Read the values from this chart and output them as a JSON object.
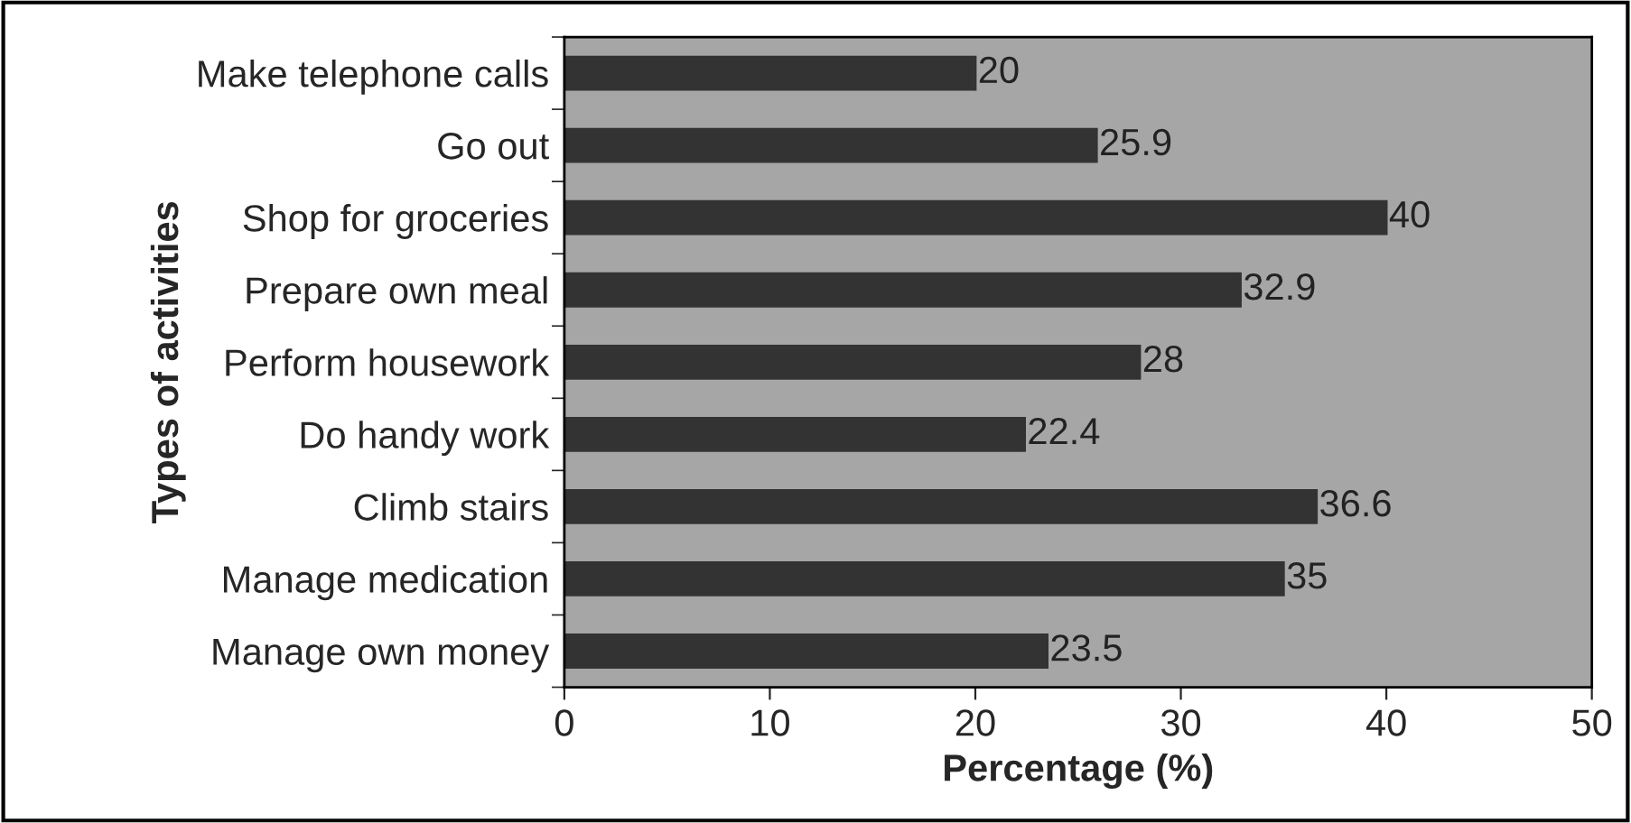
{
  "chart_data": {
    "type": "bar",
    "orientation": "horizontal",
    "xlabel": "Percentage (%)",
    "ylabel": "Types of activities",
    "categories": [
      "Make telephone calls",
      "Go out",
      "Shop for groceries",
      "Prepare own meal",
      "Perform housework",
      "Do handy work",
      "Climb stairs",
      "Manage medication",
      "Manage own money"
    ],
    "values": [
      20,
      25.9,
      40,
      32.9,
      28,
      22.4,
      36.6,
      35,
      23.5
    ],
    "color": "#333333",
    "xlim": [
      0,
      50
    ],
    "xticks": [
      0,
      10,
      20,
      30,
      40,
      50
    ],
    "grid": false,
    "legend": false,
    "data_labels": true
  }
}
